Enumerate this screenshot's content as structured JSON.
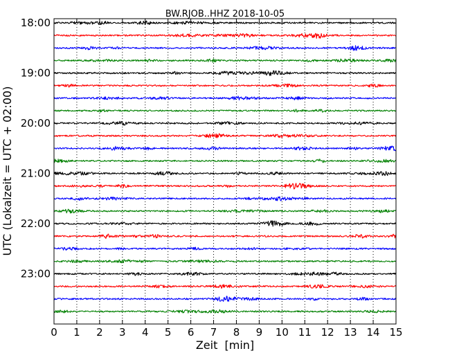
{
  "chart_data": {
    "type": "line",
    "title": "BW.RJOB..HHZ 2018-10-05",
    "xlabel": "Zeit  [min]",
    "ylabel": "UTC (Lokalzeit = UTC + 02:00)",
    "xlim": [
      0,
      15
    ],
    "x_ticks": [
      "0",
      "1",
      "2",
      "3",
      "4",
      "5",
      "6",
      "7",
      "8",
      "9",
      "10",
      "11",
      "12",
      "13",
      "14",
      "15"
    ],
    "y_tick_labels": [
      "18:00",
      "19:00",
      "20:00",
      "21:00",
      "22:00",
      "23:00"
    ],
    "y_range": [
      "17:55",
      "24:00"
    ],
    "trace_interval_minutes": 15,
    "trace_start_times": [
      "18:00",
      "18:15",
      "18:30",
      "18:45",
      "19:00",
      "19:15",
      "19:30",
      "19:45",
      "20:00",
      "20:15",
      "20:30",
      "20:45",
      "21:00",
      "21:15",
      "21:30",
      "21:45",
      "22:00",
      "22:15",
      "22:30",
      "22:45",
      "23:00",
      "23:15",
      "23:30",
      "23:45"
    ],
    "trace_colors": [
      "#000000",
      "#ff0000",
      "#0000ff",
      "#008000"
    ],
    "vertical_grid": "dotted at every minute",
    "series": [
      {
        "values": "seismogram trace per 15-minute window, colors cycle black, red, blue, green"
      }
    ]
  }
}
